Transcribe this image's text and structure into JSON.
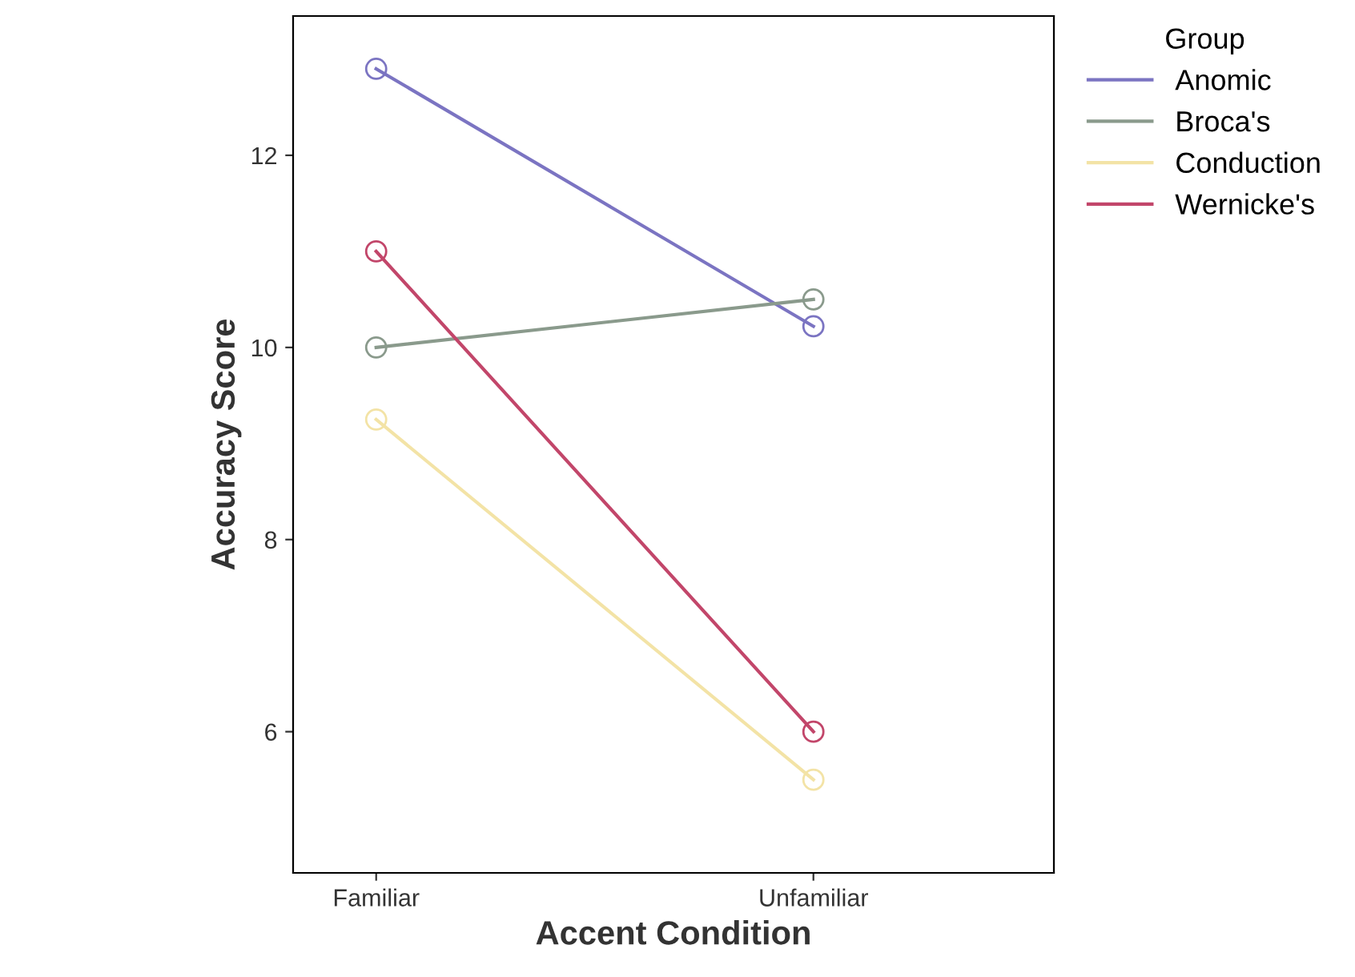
{
  "chart_data": {
    "type": "line",
    "xlabel": "Accent Condition",
    "ylabel": "Accuracy Score",
    "legend_title": "Group",
    "categories": [
      "Familiar",
      "Unfamiliar"
    ],
    "series": [
      {
        "name": "Anomic",
        "color": "#7b74c2",
        "values": [
          12.9,
          10.22
        ]
      },
      {
        "name": "Broca's",
        "color": "#8a9a8c",
        "values": [
          10.0,
          10.5
        ]
      },
      {
        "name": "Conduction",
        "color": "#f3e3a6",
        "values": [
          9.25,
          5.5
        ]
      },
      {
        "name": "Wernicke's",
        "color": "#c2466a",
        "values": [
          11.0,
          6.0
        ]
      }
    ],
    "ylim": [
      4.53,
      13.45
    ],
    "yticks": [
      6,
      8,
      10,
      12
    ],
    "grid": false,
    "legend": "right",
    "marker": "circle",
    "line_style": "solid"
  }
}
